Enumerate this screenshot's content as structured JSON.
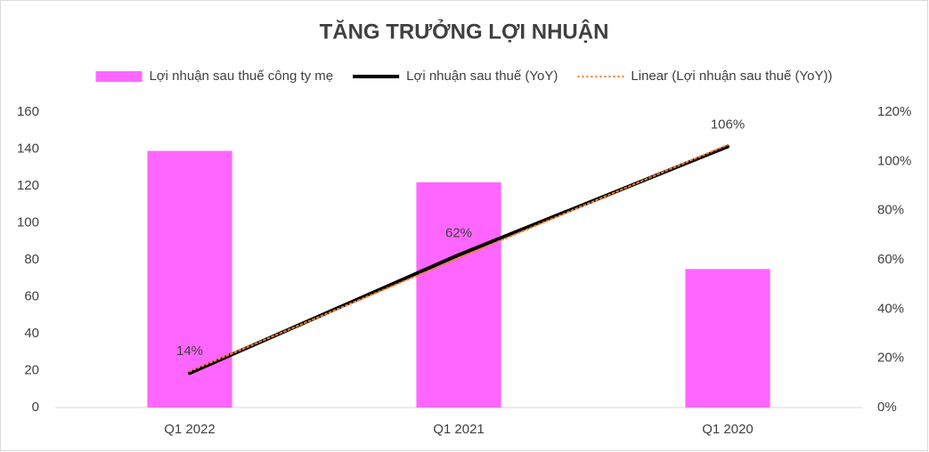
{
  "chart_data": {
    "type": "bar",
    "title": "TĂNG TRƯỞNG LỢI NHUẬN",
    "categories": [
      "Q1 2022",
      "Q1 2021",
      "Q1 2020"
    ],
    "series": [
      {
        "name": "Lợi nhuận sau thuế công ty mẹ",
        "type": "bar",
        "color": "#ff66ff",
        "values": [
          139,
          122,
          75
        ]
      },
      {
        "name": "Lợi nhuận sau thuế (YoY)",
        "type": "line",
        "axis": "y2",
        "color": "#000000",
        "values": [
          14,
          62,
          106
        ],
        "value_labels": [
          "14%",
          "62%",
          "106%"
        ]
      },
      {
        "name": "Linear (Lợi nhuận sau thuế (YoY))",
        "type": "line",
        "axis": "y2",
        "color": "#ed7d31",
        "dash": "dotted",
        "values": [
          14.7,
          60.7,
          106.7
        ]
      }
    ],
    "ylim": [
      0,
      160
    ],
    "yticks": [
      0,
      20,
      40,
      60,
      80,
      100,
      120,
      140,
      160
    ],
    "y2lim": [
      0,
      120
    ],
    "y2ticks": [
      {
        "value": 0,
        "label": "0%"
      },
      {
        "value": 20,
        "label": "20%"
      },
      {
        "value": 40,
        "label": "40%"
      },
      {
        "value": 60,
        "label": "60%"
      },
      {
        "value": 80,
        "label": "80%"
      },
      {
        "value": 100,
        "label": "100%"
      },
      {
        "value": 120,
        "label": "120%"
      }
    ],
    "grid": false,
    "legend": "top"
  }
}
